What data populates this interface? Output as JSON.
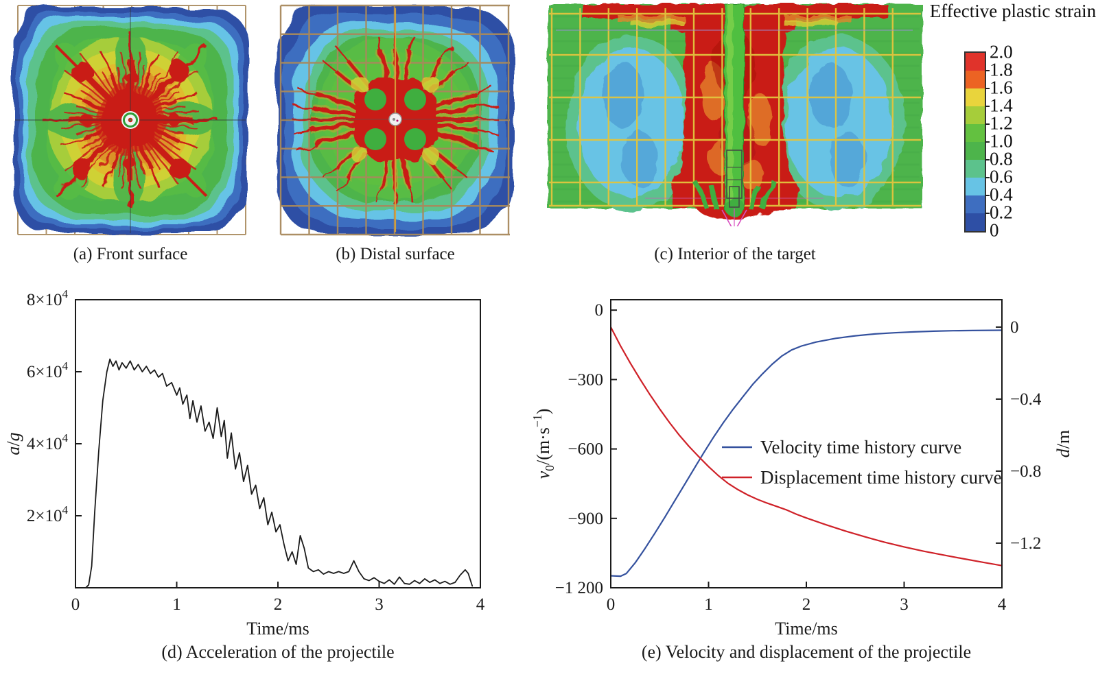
{
  "figure": {
    "colorbar": {
      "title": "Effective plastic strain",
      "tick_labels": [
        "2.0",
        "1.8",
        "1.6",
        "1.4",
        "1.2",
        "1.0",
        "0.8",
        "0.6",
        "0.4",
        "0.2",
        "0"
      ],
      "tick_values": [
        2.0,
        1.8,
        1.6,
        1.4,
        1.2,
        1.0,
        0.8,
        0.6,
        0.4,
        0.2,
        0
      ],
      "colors_top_to_bottom": [
        "#e0332b",
        "#ec6323",
        "#e9d43c",
        "#a6cd3a",
        "#63c140",
        "#4db44b",
        "#5cc28c",
        "#67c3e5",
        "#3e6ec0",
        "#2e4fa5"
      ]
    }
  },
  "chart_data": [
    {
      "type": "heatmap",
      "panel": "a",
      "caption": "(a) Front surface",
      "quantity": "Effective plastic strain",
      "value_range": [
        0,
        2.0
      ],
      "description": "Contour of effective plastic strain on the front surface of the target: blue rim at edges, green field, yellow-orange mid annulus, radial red cracks from central perforation hole, tan rebar grid visible at edges"
    },
    {
      "type": "heatmap",
      "panel": "b",
      "caption": "(b) Distal surface",
      "quantity": "Effective plastic strain",
      "value_range": [
        0,
        2.0
      ],
      "description": "Contour of effective plastic strain on the distal surface: blue outer blob, green interior, red cross-shaped damage zone with four green circular pockets around the central hole, tan rebar grid overlaid"
    },
    {
      "type": "heatmap",
      "panel": "c",
      "caption": "(c) Interior of the target",
      "quantity": "Effective plastic strain",
      "value_range": [
        0,
        2.0
      ],
      "description": "Cross-section of the target interior: central red crater column around the green projectile channel, cyan low-strain zones left and right, yellow reinforcement mesh, magenta arrow at projectile tip below the plate"
    },
    {
      "type": "line",
      "panel": "d",
      "caption": "(d) Acceleration of the projectile",
      "xlabel": "Time/ms",
      "ylabel": "*a*/*g*",
      "xlim": [
        0,
        4
      ],
      "xticks": [
        {
          "v": 0,
          "label": "0"
        },
        {
          "v": 1,
          "label": "1"
        },
        {
          "v": 2,
          "label": "2"
        },
        {
          "v": 3,
          "label": "3"
        },
        {
          "v": 4,
          "label": "4"
        }
      ],
      "yaxis": {
        "lim": [
          0,
          80000
        ],
        "ticks": [
          {
            "v": 20000,
            "label": "2×10^{4}"
          },
          {
            "v": 40000,
            "label": "4×10^{4}"
          },
          {
            "v": 60000,
            "label": "6×10^{4}"
          },
          {
            "v": 80000,
            "label": "8×10^{4}"
          }
        ]
      },
      "grid": false,
      "legend_position": "none",
      "series": [
        {
          "name": "Acceleration",
          "color": "#1a1a1a",
          "width": 1.8,
          "axis": "left",
          "points": [
            [
              0.1,
              0
            ],
            [
              0.13,
              800
            ],
            [
              0.16,
              6000
            ],
            [
              0.19,
              21000
            ],
            [
              0.23,
              38000
            ],
            [
              0.27,
              52000
            ],
            [
              0.31,
              60000
            ],
            [
              0.34,
              63500
            ],
            [
              0.37,
              61500
            ],
            [
              0.4,
              63000
            ],
            [
              0.43,
              60500
            ],
            [
              0.46,
              62500
            ],
            [
              0.5,
              61000
            ],
            [
              0.54,
              63000
            ],
            [
              0.58,
              60500
            ],
            [
              0.62,
              62000
            ],
            [
              0.66,
              60000
            ],
            [
              0.7,
              61500
            ],
            [
              0.74,
              59500
            ],
            [
              0.78,
              60500
            ],
            [
              0.82,
              58500
            ],
            [
              0.86,
              59500
            ],
            [
              0.9,
              56000
            ],
            [
              0.95,
              57000
            ],
            [
              1.0,
              53500
            ],
            [
              1.03,
              55500
            ],
            [
              1.06,
              51000
            ],
            [
              1.1,
              53500
            ],
            [
              1.13,
              47000
            ],
            [
              1.16,
              52000
            ],
            [
              1.2,
              46000
            ],
            [
              1.24,
              50500
            ],
            [
              1.28,
              43500
            ],
            [
              1.32,
              46000
            ],
            [
              1.36,
              41500
            ],
            [
              1.4,
              50000
            ],
            [
              1.44,
              42000
            ],
            [
              1.47,
              46500
            ],
            [
              1.5,
              36000
            ],
            [
              1.54,
              43000
            ],
            [
              1.58,
              33000
            ],
            [
              1.62,
              37500
            ],
            [
              1.66,
              29500
            ],
            [
              1.7,
              34000
            ],
            [
              1.74,
              26000
            ],
            [
              1.78,
              28500
            ],
            [
              1.82,
              22000
            ],
            [
              1.86,
              25000
            ],
            [
              1.9,
              17500
            ],
            [
              1.94,
              21000
            ],
            [
              1.98,
              15500
            ],
            [
              2.02,
              17500
            ],
            [
              2.06,
              12000
            ],
            [
              2.1,
              7500
            ],
            [
              2.14,
              10000
            ],
            [
              2.18,
              6500
            ],
            [
              2.22,
              14500
            ],
            [
              2.26,
              11000
            ],
            [
              2.3,
              5500
            ],
            [
              2.35,
              4500
            ],
            [
              2.4,
              5000
            ],
            [
              2.45,
              3800
            ],
            [
              2.5,
              4500
            ],
            [
              2.55,
              4000
            ],
            [
              2.6,
              4500
            ],
            [
              2.65,
              4000
            ],
            [
              2.7,
              4500
            ],
            [
              2.75,
              7500
            ],
            [
              2.8,
              4500
            ],
            [
              2.85,
              2500
            ],
            [
              2.9,
              2000
            ],
            [
              2.95,
              2800
            ],
            [
              3.0,
              1800
            ],
            [
              3.05,
              1200
            ],
            [
              3.1,
              2200
            ],
            [
              3.15,
              1000
            ],
            [
              3.2,
              3000
            ],
            [
              3.25,
              1200
            ],
            [
              3.3,
              1000
            ],
            [
              3.35,
              2000
            ],
            [
              3.4,
              1200
            ],
            [
              3.45,
              2500
            ],
            [
              3.5,
              1500
            ],
            [
              3.55,
              2200
            ],
            [
              3.6,
              1200
            ],
            [
              3.65,
              1800
            ],
            [
              3.7,
              1000
            ],
            [
              3.75,
              1500
            ],
            [
              3.8,
              3500
            ],
            [
              3.85,
              5000
            ],
            [
              3.88,
              4000
            ],
            [
              3.92,
              500
            ]
          ]
        }
      ]
    },
    {
      "type": "line",
      "panel": "e",
      "caption": "(e) Velocity and displacement of the projectile",
      "xlabel": "Time/ms",
      "ylabel_left": "*v*_{0}/(m·s^{−1})",
      "ylabel_right": "*d*/m",
      "xlim": [
        0,
        4
      ],
      "xticks": [
        {
          "v": 0,
          "label": "0"
        },
        {
          "v": 1,
          "label": "1"
        },
        {
          "v": 2,
          "label": "2"
        },
        {
          "v": 3,
          "label": "3"
        },
        {
          "v": 4,
          "label": "4"
        }
      ],
      "yaxis_left": {
        "lim": [
          -1200,
          45
        ],
        "ticks": [
          {
            "v": 0,
            "label": "0"
          },
          {
            "v": -300,
            "label": "−300"
          },
          {
            "v": -600,
            "label": "−600"
          },
          {
            "v": -900,
            "label": "−900"
          },
          {
            "v": -1200,
            "label": "−1 200"
          }
        ]
      },
      "yaxis_right": {
        "lim": [
          -1.448,
          0.152
        ],
        "ticks": [
          {
            "v": 0,
            "label": "0"
          },
          {
            "v": -0.4,
            "label": "−0.4"
          },
          {
            "v": -0.8,
            "label": "−0.8"
          },
          {
            "v": -1.2,
            "label": "−1.2"
          }
        ]
      },
      "grid": false,
      "legend_position": "inside-center-left",
      "series": [
        {
          "name": "Velocity time history curve",
          "color": "#34519e",
          "width": 2.2,
          "axis": "left",
          "points": [
            [
              0,
              -1148
            ],
            [
              0.1,
              -1150
            ],
            [
              0.16,
              -1138
            ],
            [
              0.25,
              -1092
            ],
            [
              0.35,
              -1030
            ],
            [
              0.45,
              -965
            ],
            [
              0.55,
              -897
            ],
            [
              0.65,
              -827
            ],
            [
              0.75,
              -757
            ],
            [
              0.85,
              -687
            ],
            [
              0.95,
              -617
            ],
            [
              1.05,
              -550
            ],
            [
              1.15,
              -487
            ],
            [
              1.25,
              -429
            ],
            [
              1.35,
              -375
            ],
            [
              1.45,
              -322
            ],
            [
              1.55,
              -276
            ],
            [
              1.65,
              -234
            ],
            [
              1.75,
              -198
            ],
            [
              1.85,
              -172
            ],
            [
              1.95,
              -155
            ],
            [
              2.1,
              -138
            ],
            [
              2.3,
              -122
            ],
            [
              2.5,
              -111
            ],
            [
              2.7,
              -103
            ],
            [
              2.9,
              -98
            ],
            [
              3.1,
              -94
            ],
            [
              3.3,
              -91
            ],
            [
              3.5,
              -89
            ],
            [
              3.7,
              -88
            ],
            [
              4.0,
              -87
            ]
          ]
        },
        {
          "name": "Displacement time history curve",
          "color": "#cf2128",
          "width": 2.2,
          "axis": "right",
          "points": [
            [
              0,
              0
            ],
            [
              0.1,
              -0.105
            ],
            [
              0.2,
              -0.2
            ],
            [
              0.3,
              -0.29
            ],
            [
              0.4,
              -0.375
            ],
            [
              0.5,
              -0.455
            ],
            [
              0.6,
              -0.53
            ],
            [
              0.7,
              -0.6
            ],
            [
              0.8,
              -0.663
            ],
            [
              0.9,
              -0.72
            ],
            [
              1.0,
              -0.775
            ],
            [
              1.1,
              -0.825
            ],
            [
              1.2,
              -0.868
            ],
            [
              1.3,
              -0.903
            ],
            [
              1.4,
              -0.932
            ],
            [
              1.5,
              -0.957
            ],
            [
              1.6,
              -0.978
            ],
            [
              1.7,
              -0.997
            ],
            [
              1.8,
              -1.016
            ],
            [
              1.9,
              -1.04
            ],
            [
              2.0,
              -1.06
            ],
            [
              2.2,
              -1.098
            ],
            [
              2.4,
              -1.133
            ],
            [
              2.6,
              -1.165
            ],
            [
              2.8,
              -1.195
            ],
            [
              3.0,
              -1.221
            ],
            [
              3.2,
              -1.245
            ],
            [
              3.4,
              -1.266
            ],
            [
              3.6,
              -1.286
            ],
            [
              3.8,
              -1.306
            ],
            [
              4.0,
              -1.325
            ]
          ]
        }
      ]
    }
  ]
}
